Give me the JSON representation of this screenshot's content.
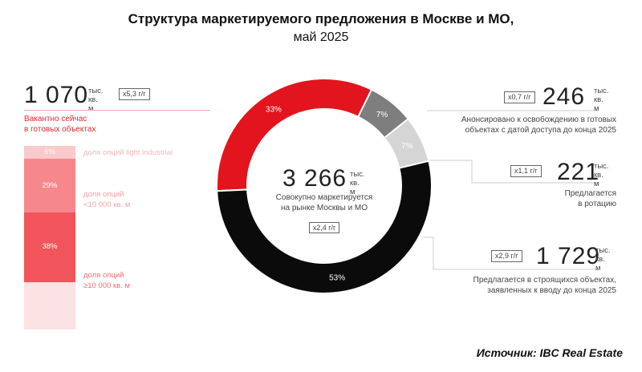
{
  "title": "Структура маркетируемого предложения в Москве и МО,",
  "subtitle": "май 2025",
  "left_block": {
    "value": "1 070",
    "unit_line1": "тыс.",
    "unit_line2": "кв. м",
    "badge": "x5,3 г/г",
    "label_line1": "Вакантно сейчас",
    "label_line2": "в готовых объектах",
    "segments": [
      {
        "pct": "6%",
        "pct_value": 6,
        "label_line1": "доля опций light industrial",
        "label_line2": "",
        "color": "#f9c9cb",
        "text_color": "#f2b6b9"
      },
      {
        "pct": "29%",
        "pct_value": 29,
        "label_line1": "доля опций",
        "label_line2": "<10 000 кв. м",
        "color": "#f6888d",
        "text_color": "#f5a0a4"
      },
      {
        "pct": "38%",
        "pct_value": 38,
        "label_line1": "доля опций",
        "label_line2": "≥10 000 кв. м",
        "color": "#f1545b",
        "text_color": "#ef6d73"
      }
    ]
  },
  "center": {
    "value": "3 266",
    "unit_line1": "тыс.",
    "unit_line2": "кв. м",
    "label_line1": "Совокупно маркетируется",
    "label_line2": "на рынке Москвы и МО",
    "badge": "x2,4 г/г"
  },
  "right_blocks": [
    {
      "value": "246",
      "unit_line1": "тыс.",
      "unit_line2": "кв. м",
      "badge": "x0,7 г/г",
      "label_line1": "Анонсировано к освобождению в готовых",
      "label_line2": "объектах с датой доступа до конца 2025"
    },
    {
      "value": "221",
      "unit_line1": "тыс.",
      "unit_line2": "кв. м",
      "badge": "x1,1 г/г",
      "label_line1": "Предлагается",
      "label_line2": "в ротацию"
    },
    {
      "value": "1 729",
      "unit_line1": "тыс.",
      "unit_line2": "кв. м",
      "badge": "x2,9 г/г",
      "label_line1": "Предлагается в строящихся объектах,",
      "label_line2": "заявленных к вводу до конца 2025"
    }
  ],
  "source": "Источник: IBC Real Estate",
  "chart_data": {
    "type": "pie",
    "donut": true,
    "categories": [
      "Вакантно сейчас в готовых объектах",
      "Анонсировано к освобождению в готовых объектах с датой доступа до конца 2025",
      "Предлагается в ротацию",
      "Предлагается в строящихся объектах, заявленных к вводу до конца 2025"
    ],
    "values": [
      33,
      7,
      7,
      53
    ],
    "labels": [
      "33%",
      "7%",
      "7%",
      "53%"
    ],
    "colors": [
      "#e2141e",
      "#7e7e7e",
      "#d5d5d5",
      "#0b0b0b"
    ],
    "total": "3 266"
  }
}
